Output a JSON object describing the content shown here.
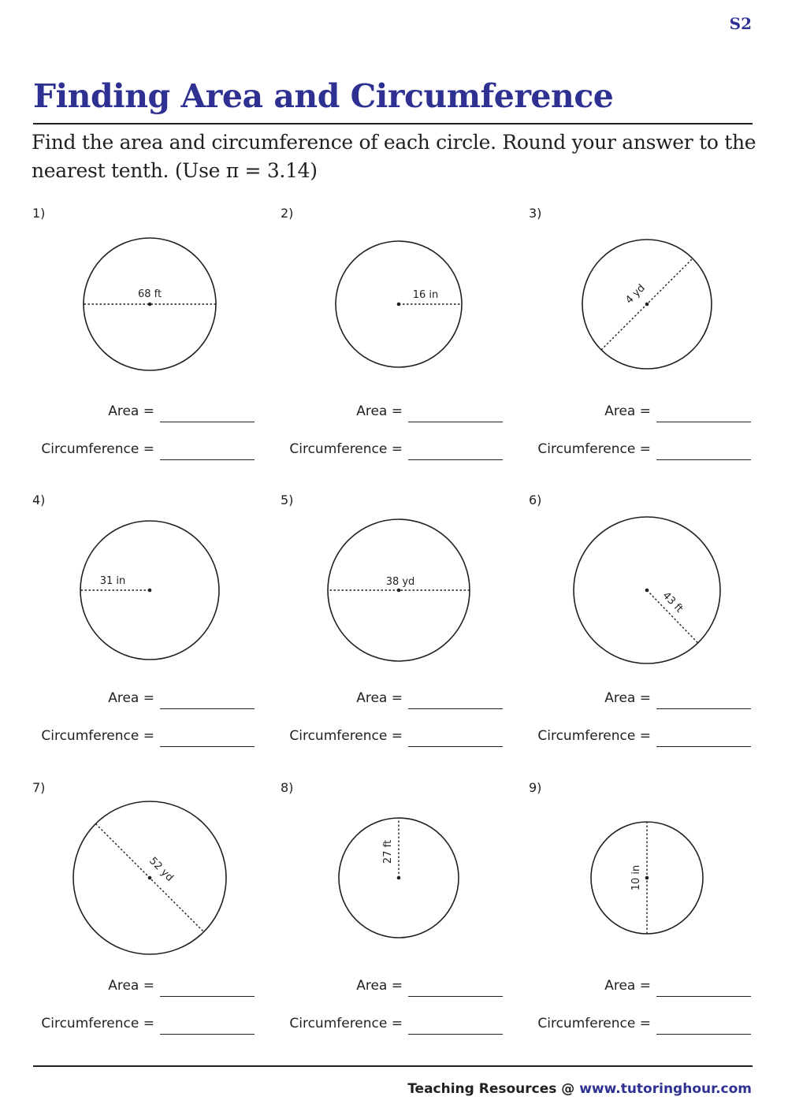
{
  "sheet_code": "S2",
  "title": "Finding Area and Circumference",
  "instructions": "Find the area and circumference of each circle. Round your answer to the nearest tenth. (Use π = 3.14)",
  "labels": {
    "area": "Area =",
    "circumference": "Circumference ="
  },
  "problems": [
    {
      "number": "1)",
      "measure": "68 ft",
      "type": "diameter"
    },
    {
      "number": "2)",
      "measure": "16 in",
      "type": "radius"
    },
    {
      "number": "3)",
      "measure": "4 yd",
      "type": "radius"
    },
    {
      "number": "4)",
      "measure": "31 in",
      "type": "radius"
    },
    {
      "number": "5)",
      "measure": "38 yd",
      "type": "diameter"
    },
    {
      "number": "6)",
      "measure": "43 ft",
      "type": "radius"
    },
    {
      "number": "7)",
      "measure": "52 yd",
      "type": "radius"
    },
    {
      "number": "8)",
      "measure": "27 ft",
      "type": "radius"
    },
    {
      "number": "9)",
      "measure": "10 in",
      "type": "radius"
    }
  ],
  "footer": {
    "text": "Teaching Resources @ ",
    "url": "www.tutoringhour.com"
  }
}
